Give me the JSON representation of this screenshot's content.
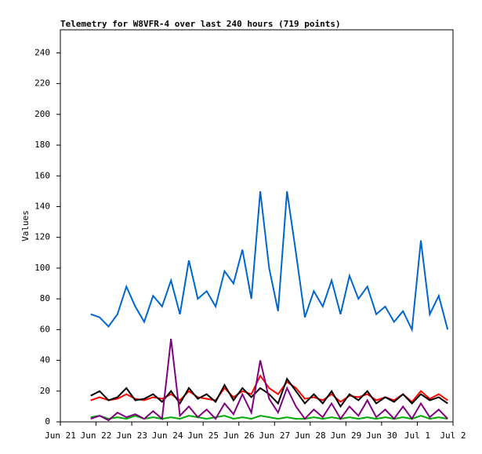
{
  "chart_data": {
    "type": "line",
    "title": "Telemetry for W8VFR-4 over last 240 hours (719 points)",
    "y_label": "Values",
    "xlim": [
      0,
      11
    ],
    "xticks": [
      {
        "value": 0,
        "label": "Jun 21"
      },
      {
        "value": 1,
        "label": "Jun 22"
      },
      {
        "value": 2,
        "label": "Jun 23"
      },
      {
        "value": 3,
        "label": "Jun 24"
      },
      {
        "value": 4,
        "label": "Jun 25"
      },
      {
        "value": 5,
        "label": "Jun 26"
      },
      {
        "value": 6,
        "label": "Jun 27"
      },
      {
        "value": 7,
        "label": "Jun 28"
      },
      {
        "value": 8,
        "label": "Jun 29"
      },
      {
        "value": 9,
        "label": "Jun 30"
      },
      {
        "value": 10,
        "label": "Jul 1"
      },
      {
        "value": 11,
        "label": "Jul 2"
      }
    ],
    "ylim": [
      0,
      255
    ],
    "yticks": [
      0,
      20,
      40,
      60,
      80,
      100,
      120,
      140,
      160,
      180,
      200,
      220,
      240
    ],
    "grid": false,
    "x": [
      0.85,
      1.1,
      1.35,
      1.6,
      1.85,
      2.1,
      2.35,
      2.6,
      2.85,
      3.1,
      3.35,
      3.6,
      3.85,
      4.1,
      4.35,
      4.6,
      4.85,
      5.1,
      5.35,
      5.6,
      5.85,
      6.1,
      6.35,
      6.6,
      6.85,
      7.1,
      7.35,
      7.6,
      7.85,
      8.1,
      8.35,
      8.6,
      8.85,
      9.1,
      9.35,
      9.6,
      9.85,
      10.1,
      10.35,
      10.6,
      10.85
    ],
    "series": [
      {
        "color": "#0066cc",
        "values": [
          70,
          68,
          62,
          70,
          88,
          75,
          65,
          82,
          75,
          92,
          70,
          105,
          80,
          85,
          75,
          98,
          90,
          112,
          80,
          150,
          100,
          72,
          150,
          110,
          68,
          85,
          75,
          92,
          70,
          95,
          80,
          88,
          70,
          75,
          65,
          72,
          60,
          118,
          70,
          82,
          60
        ]
      },
      {
        "color": "#ff0000",
        "values": [
          14,
          16,
          14,
          15,
          18,
          15,
          14,
          16,
          15,
          18,
          14,
          20,
          16,
          15,
          14,
          22,
          16,
          20,
          18,
          30,
          22,
          18,
          26,
          22,
          15,
          16,
          14,
          18,
          13,
          17,
          16,
          18,
          14,
          16,
          14,
          18,
          13,
          20,
          15,
          18,
          14
        ]
      },
      {
        "color": "#000000",
        "values": [
          17,
          20,
          14,
          16,
          22,
          14,
          15,
          18,
          13,
          20,
          12,
          22,
          15,
          18,
          13,
          24,
          14,
          22,
          16,
          22,
          18,
          12,
          28,
          20,
          12,
          18,
          12,
          20,
          10,
          18,
          14,
          20,
          12,
          16,
          13,
          18,
          12,
          18,
          14,
          16,
          12
        ]
      },
      {
        "color": "#00aa00",
        "values": [
          3,
          4,
          2,
          3,
          2,
          4,
          2,
          3,
          2,
          3,
          2,
          4,
          3,
          2,
          3,
          4,
          2,
          3,
          2,
          4,
          3,
          2,
          3,
          2,
          2,
          3,
          2,
          3,
          2,
          3,
          2,
          3,
          2,
          3,
          2,
          3,
          2,
          4,
          2,
          3,
          2
        ]
      },
      {
        "color": "#800080",
        "values": [
          2,
          4,
          1,
          6,
          3,
          5,
          2,
          7,
          2,
          54,
          4,
          10,
          3,
          8,
          2,
          12,
          5,
          18,
          6,
          40,
          15,
          6,
          22,
          10,
          2,
          8,
          3,
          12,
          2,
          10,
          4,
          14,
          3,
          8,
          2,
          10,
          2,
          12,
          3,
          8,
          2
        ]
      }
    ]
  }
}
